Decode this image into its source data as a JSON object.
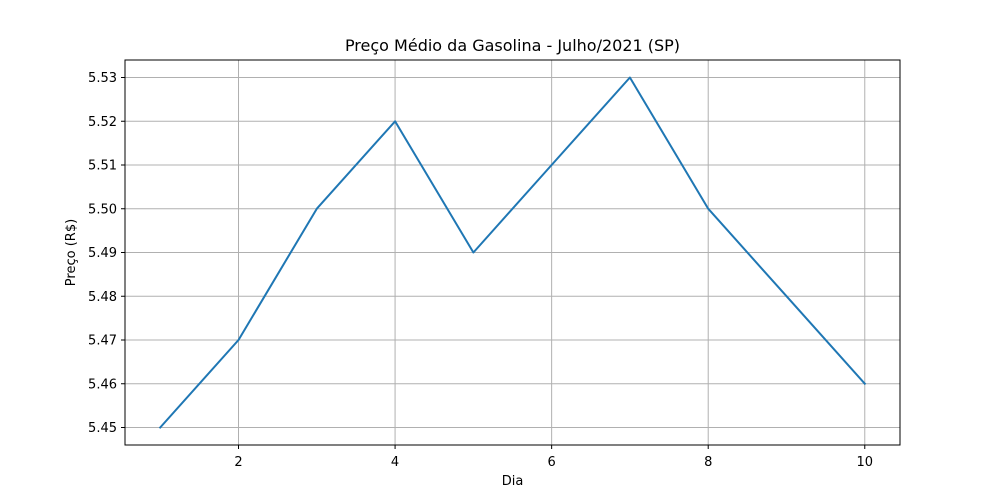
{
  "chart_data": {
    "type": "line",
    "title": "Preço Médio da Gasolina - Julho/2021 (SP)",
    "xlabel": "Dia",
    "ylabel": "Preço (R$)",
    "x": [
      1,
      2,
      3,
      4,
      5,
      6,
      7,
      8,
      9,
      10
    ],
    "series": [
      {
        "values": [
          5.45,
          5.47,
          5.5,
          5.52,
          5.49,
          5.51,
          5.53,
          5.5,
          5.48,
          5.46
        ],
        "color": "#1f77b4"
      }
    ],
    "xlim": [
      0.55,
      10.45
    ],
    "ylim": [
      5.446,
      5.534
    ],
    "xticks": [
      2,
      4,
      6,
      8,
      10
    ],
    "xtick_labels": [
      "2",
      "4",
      "6",
      "8",
      "10"
    ],
    "yticks": [
      5.45,
      5.46,
      5.47,
      5.48,
      5.49,
      5.5,
      5.51,
      5.52,
      5.53
    ],
    "ytick_labels": [
      "5.45",
      "5.46",
      "5.47",
      "5.48",
      "5.49",
      "5.50",
      "5.51",
      "5.52",
      "5.53"
    ],
    "grid": true,
    "legend": false
  }
}
